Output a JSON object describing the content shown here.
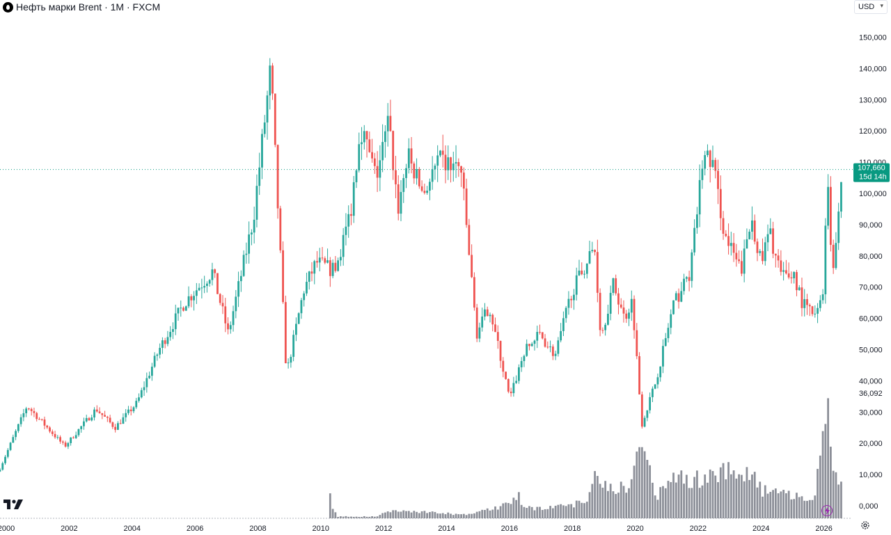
{
  "header": {
    "title": "Нефть марки Brent · 1M · FXCM",
    "currency": "USD"
  },
  "colors": {
    "up": "#26a69a",
    "down": "#ef5350",
    "volume": "#787b86",
    "price_line": "#089981",
    "flash": "#9c27b0"
  },
  "chart_data": {
    "type": "candlestick",
    "price_axis": {
      "ticks": [
        "0,000",
        "10,000",
        "20,000",
        "30,000",
        "40,000",
        "50,000",
        "60,000",
        "70,000",
        "80,000",
        "90,000",
        "100,000",
        "110,000",
        "120,000",
        "130,000",
        "140,000",
        "150,000"
      ],
      "ylim": [
        0,
        154
      ]
    },
    "time_axis": {
      "ticks": [
        "2000",
        "2002",
        "2004",
        "2006",
        "2008",
        "2010",
        "2012",
        "2014",
        "2016",
        "2018",
        "2020",
        "2022",
        "2024",
        "2026"
      ],
      "xlim": [
        1999.8,
        2026.85
      ]
    },
    "last_price": {
      "value": 107.66,
      "label": "107,660",
      "countdown": "15d 14h"
    },
    "volume_marker": {
      "value": 36.092,
      "label": "36,092"
    },
    "price_anchors": [
      [
        1999.8,
        11
      ],
      [
        2000.7,
        32
      ],
      [
        2001.9,
        19
      ],
      [
        2002.9,
        31
      ],
      [
        2003.5,
        25
      ],
      [
        2004.2,
        33
      ],
      [
        2004.9,
        50
      ],
      [
        2005.7,
        65
      ],
      [
        2006.6,
        75
      ],
      [
        2007.1,
        55
      ],
      [
        2007.9,
        92
      ],
      [
        2008.45,
        140
      ],
      [
        2008.95,
        42
      ],
      [
        2009.5,
        69
      ],
      [
        2009.9,
        78
      ],
      [
        2010.5,
        75
      ],
      [
        2011.0,
        95
      ],
      [
        2011.3,
        122
      ],
      [
        2011.8,
        105
      ],
      [
        2012.2,
        123
      ],
      [
        2012.5,
        95
      ],
      [
        2012.8,
        112
      ],
      [
        2013.3,
        100
      ],
      [
        2013.8,
        110
      ],
      [
        2014.5,
        108
      ],
      [
        2015.0,
        55
      ],
      [
        2015.4,
        64
      ],
      [
        2016.05,
        34
      ],
      [
        2016.5,
        49
      ],
      [
        2017.0,
        55
      ],
      [
        2017.5,
        48
      ],
      [
        2018.0,
        68
      ],
      [
        2018.75,
        83
      ],
      [
        2018.95,
        54
      ],
      [
        2019.35,
        71
      ],
      [
        2019.7,
        60
      ],
      [
        2019.95,
        66
      ],
      [
        2020.25,
        26
      ],
      [
        2020.7,
        40
      ],
      [
        2021.25,
        64
      ],
      [
        2021.8,
        75
      ],
      [
        2022.2,
        112
      ],
      [
        2022.5,
        110
      ],
      [
        2022.9,
        86
      ],
      [
        2023.4,
        75
      ],
      [
        2023.75,
        92
      ],
      [
        2024.05,
        77
      ],
      [
        2024.3,
        88
      ],
      [
        2024.7,
        73
      ],
      [
        2025.1,
        74
      ],
      [
        2025.35,
        65
      ],
      [
        2025.8,
        60
      ],
      [
        2026.05,
        72
      ],
      [
        2026.15,
        110
      ],
      [
        2026.3,
        74
      ],
      [
        2026.6,
        104
      ]
    ],
    "volume_anchors": [
      [
        1999.8,
        0
      ],
      [
        2010.25,
        0
      ],
      [
        2010.3,
        6
      ],
      [
        2010.4,
        3
      ],
      [
        2010.55,
        0.5
      ],
      [
        2011.85,
        0.5
      ],
      [
        2012.0,
        2
      ],
      [
        2013.0,
        2
      ],
      [
        2014.6,
        1
      ],
      [
        2015.6,
        3
      ],
      [
        2016.3,
        6
      ],
      [
        2016.5,
        3
      ],
      [
        2017.5,
        3
      ],
      [
        2018.5,
        5
      ],
      [
        2018.65,
        13
      ],
      [
        2019.0,
        10
      ],
      [
        2019.8,
        8
      ],
      [
        2020.2,
        22
      ],
      [
        2020.7,
        6
      ],
      [
        2021.2,
        12
      ],
      [
        2022.0,
        11
      ],
      [
        2022.8,
        14
      ],
      [
        2023.6,
        13
      ],
      [
        2024.05,
        8
      ],
      [
        2024.5,
        7
      ],
      [
        2025.0,
        7
      ],
      [
        2025.7,
        5
      ],
      [
        2026.1,
        37
      ],
      [
        2026.3,
        12
      ],
      [
        2026.6,
        8
      ]
    ]
  }
}
